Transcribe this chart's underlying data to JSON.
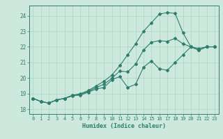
{
  "xlabel": "Humidex (Indice chaleur)",
  "ylabel": "",
  "bg_color": "#cde8dc",
  "line_color": "#2e7d6e",
  "grid_color": "#a8d5c5",
  "xlim": [
    -0.5,
    23.5
  ],
  "ylim": [
    17.7,
    24.65
  ],
  "yticks": [
    18,
    19,
    20,
    21,
    22,
    23,
    24
  ],
  "xticks": [
    0,
    1,
    2,
    3,
    4,
    5,
    6,
    7,
    8,
    9,
    10,
    11,
    12,
    13,
    14,
    15,
    16,
    17,
    18,
    19,
    20,
    21,
    22,
    23
  ],
  "series1_x": [
    0,
    1,
    2,
    3,
    4,
    5,
    6,
    7,
    8,
    9,
    10,
    11,
    12,
    13,
    14,
    15,
    16,
    17,
    18,
    19,
    20,
    21,
    22,
    23
  ],
  "series1_y": [
    18.7,
    18.5,
    18.4,
    18.6,
    18.7,
    18.9,
    18.9,
    19.1,
    19.3,
    19.4,
    19.9,
    20.1,
    19.4,
    19.6,
    20.7,
    21.1,
    20.6,
    20.5,
    21.0,
    21.5,
    22.0,
    21.8,
    22.0,
    22.0
  ],
  "series2_x": [
    0,
    1,
    2,
    3,
    4,
    5,
    6,
    7,
    8,
    9,
    10,
    11,
    12,
    13,
    14,
    15,
    16,
    17,
    18,
    19,
    20,
    21,
    22,
    23
  ],
  "series2_y": [
    18.7,
    18.5,
    18.4,
    18.6,
    18.7,
    18.9,
    19.0,
    19.2,
    19.5,
    19.8,
    20.2,
    20.8,
    21.5,
    22.2,
    23.0,
    23.55,
    24.1,
    24.2,
    24.15,
    22.9,
    22.0,
    21.8,
    22.0,
    22.0
  ],
  "series3_x": [
    0,
    1,
    2,
    3,
    4,
    5,
    6,
    7,
    8,
    9,
    10,
    11,
    12,
    13,
    14,
    15,
    16,
    17,
    18,
    19,
    20,
    21,
    22,
    23
  ],
  "series3_y": [
    18.7,
    18.5,
    18.4,
    18.6,
    18.7,
    18.85,
    18.95,
    19.15,
    19.4,
    19.6,
    20.0,
    20.45,
    20.4,
    20.9,
    21.8,
    22.3,
    22.4,
    22.35,
    22.55,
    22.2,
    22.0,
    21.9,
    22.0,
    22.0
  ]
}
